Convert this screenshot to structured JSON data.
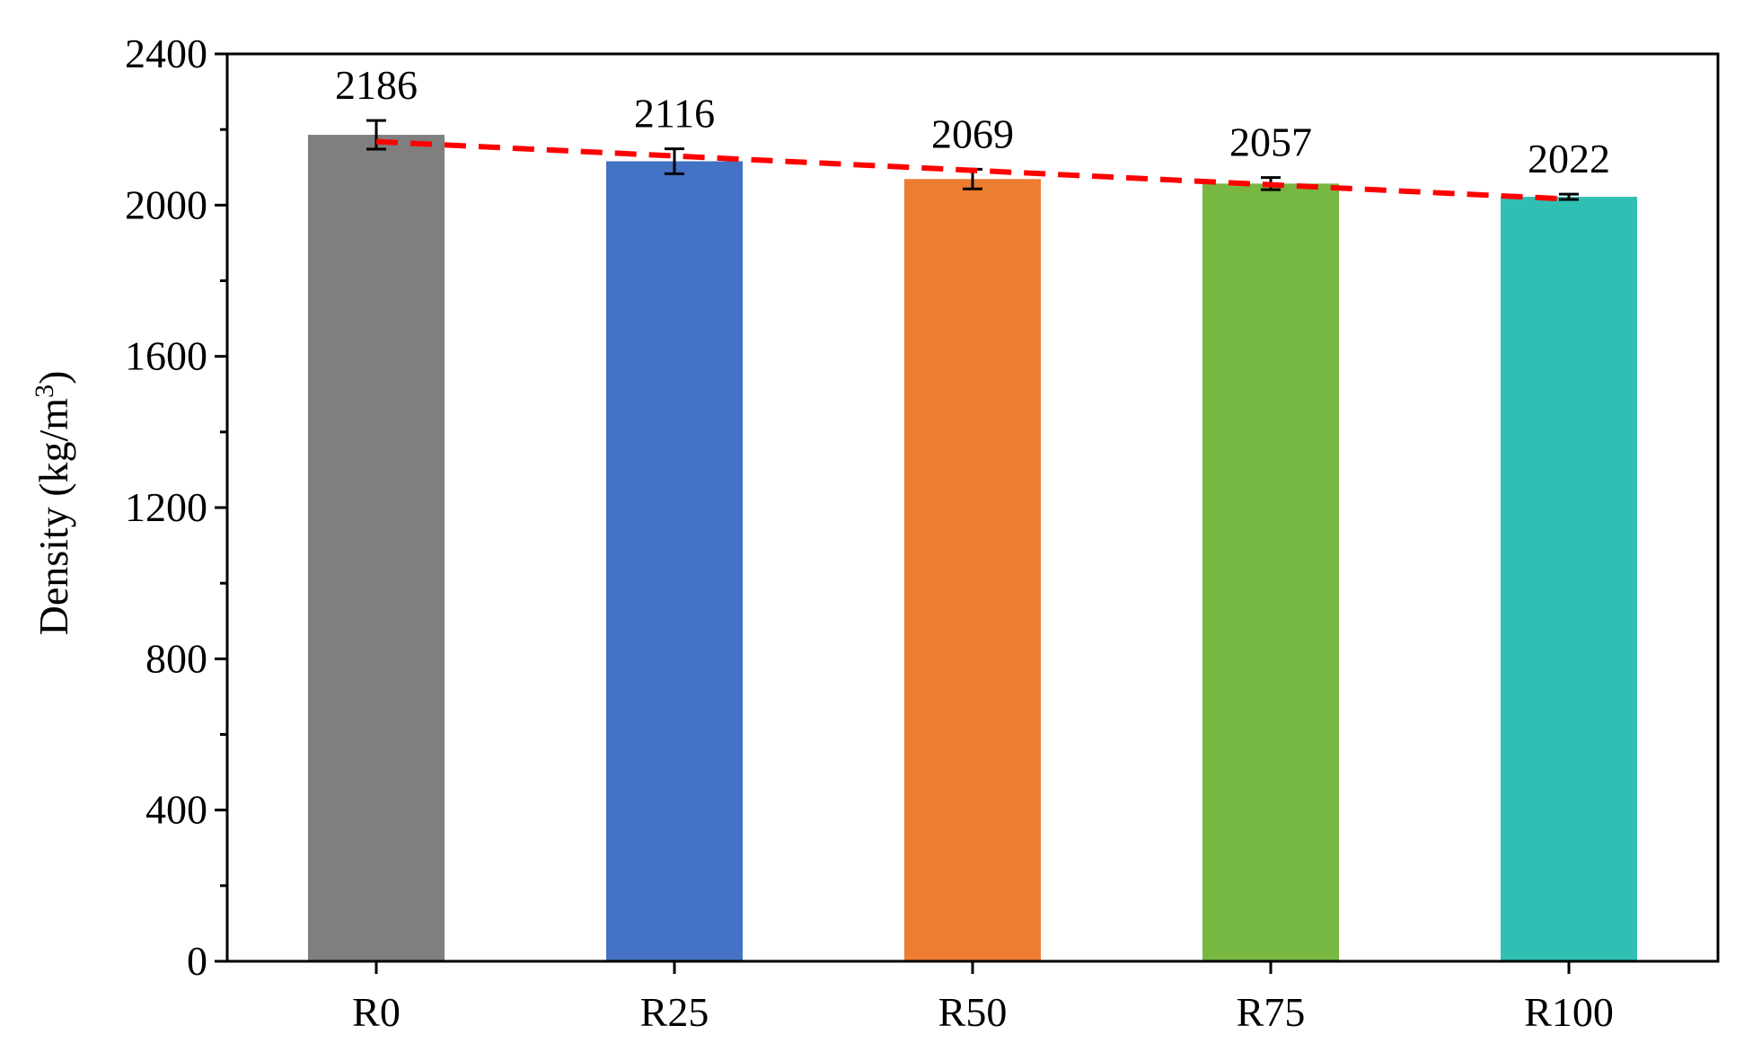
{
  "chart_data": {
    "type": "bar",
    "categories": [
      "R0",
      "R25",
      "R50",
      "R75",
      "R100"
    ],
    "values": [
      2186,
      2116,
      2069,
      2057,
      2022
    ],
    "data_labels": [
      "2186",
      "2116",
      "2069",
      "2057",
      "2022"
    ],
    "error_bars": [
      38,
      33,
      26,
      16,
      7
    ],
    "colors": [
      "#7f7f7f",
      "#4472c4",
      "#ed7d31",
      "#77b843",
      "#31bfb3"
    ],
    "trend_line": {
      "style": "dashed",
      "color": "#ff0000",
      "values": [
        2168,
        2130,
        2092,
        2054,
        2016
      ]
    },
    "ylabel": "Density (kg/m",
    "ylabel_sup": "3",
    "ylabel_tail": ")",
    "ylim": [
      0,
      2400
    ],
    "yticks": [
      0,
      400,
      800,
      1200,
      1600,
      2000,
      2400
    ],
    "ytick_labels": [
      "0",
      "400",
      "800",
      "1200",
      "1600",
      "2000",
      "2400"
    ],
    "grid": false,
    "legend": "none"
  }
}
